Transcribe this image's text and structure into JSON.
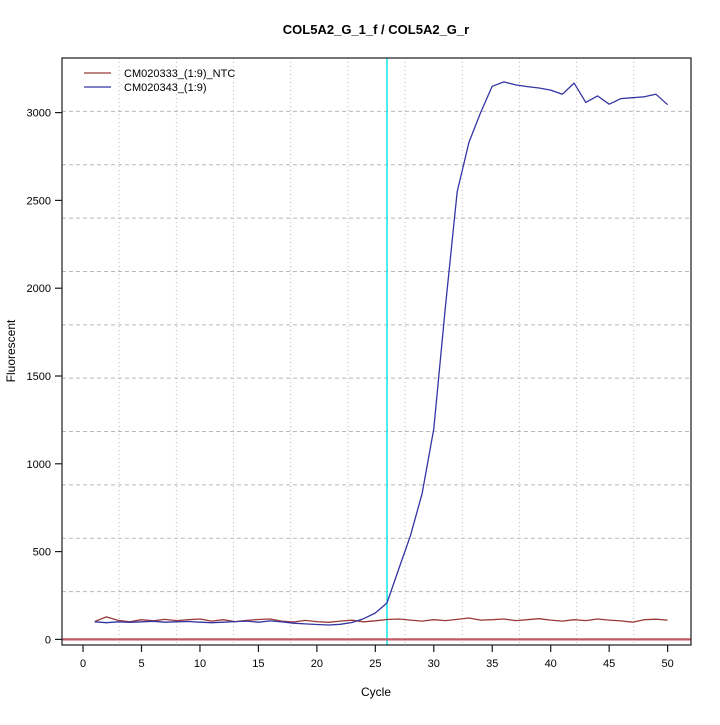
{
  "title": "COL5A2_G_1_f / COL5A2_G_r",
  "axes": {
    "xlabel": "Cycle",
    "ylabel": "Fluorescent"
  },
  "legend": {
    "position": "top-left",
    "entries": [
      {
        "label": "CM020333_(1:9)_NTC",
        "color": "#993a3a"
      },
      {
        "label": "CM020343_(1:9)",
        "color": "#3434a4"
      }
    ]
  },
  "colors": {
    "axis": "#1a1a1a",
    "grid": "#b9b9b9",
    "marker_line": "#00e5e5",
    "threshold_line": "#c25964",
    "background": "#ffffff"
  },
  "chart_data": {
    "type": "line",
    "title": "COL5A2_G_1_f / COL5A2_G_r",
    "xlabel": "Cycle",
    "ylabel": "Fluorescent",
    "x_ticks": [
      0,
      5,
      10,
      15,
      20,
      25,
      30,
      35,
      40,
      45,
      50
    ],
    "y_ticks": [
      0,
      500,
      1000,
      1500,
      2000,
      2500,
      3000
    ],
    "xlim": [
      -1.8,
      52.0
    ],
    "ylim": [
      -32,
      3311
    ],
    "grid": true,
    "vertical_marker_x": 26,
    "threshold_value": 0,
    "x_start": 1,
    "x_step": 1,
    "series": [
      {
        "name": "CM020333_(1:9)_NTC",
        "color": "#993a3a",
        "values": [
          102,
          128,
          108,
          100,
          112,
          106,
          114,
          107,
          112,
          116,
          104,
          112,
          101,
          108,
          113,
          116,
          104,
          99,
          108,
          101,
          97,
          104,
          109,
          100,
          106,
          113,
          116,
          110,
          104,
          112,
          107,
          114,
          122,
          110,
          112,
          116,
          107,
          112,
          118,
          110,
          104,
          112,
          107,
          116,
          110,
          105,
          98,
          112,
          115,
          110
        ]
      },
      {
        "name": "CM020343_(1:9)",
        "color": "#3434a4",
        "values": [
          100,
          95,
          100,
          97,
          100,
          103,
          98,
          100,
          102,
          98,
          95,
          98,
          101,
          104,
          98,
          105,
          100,
          92,
          88,
          85,
          82,
          86,
          96,
          118,
          150,
          208,
          400,
          590,
          830,
          1200,
          1900,
          2550,
          2830,
          3000,
          3150,
          3175,
          3158,
          3148,
          3140,
          3128,
          3105,
          3168,
          3058,
          3095,
          3048,
          3080,
          3085,
          3090,
          3105,
          3045
        ]
      }
    ]
  }
}
